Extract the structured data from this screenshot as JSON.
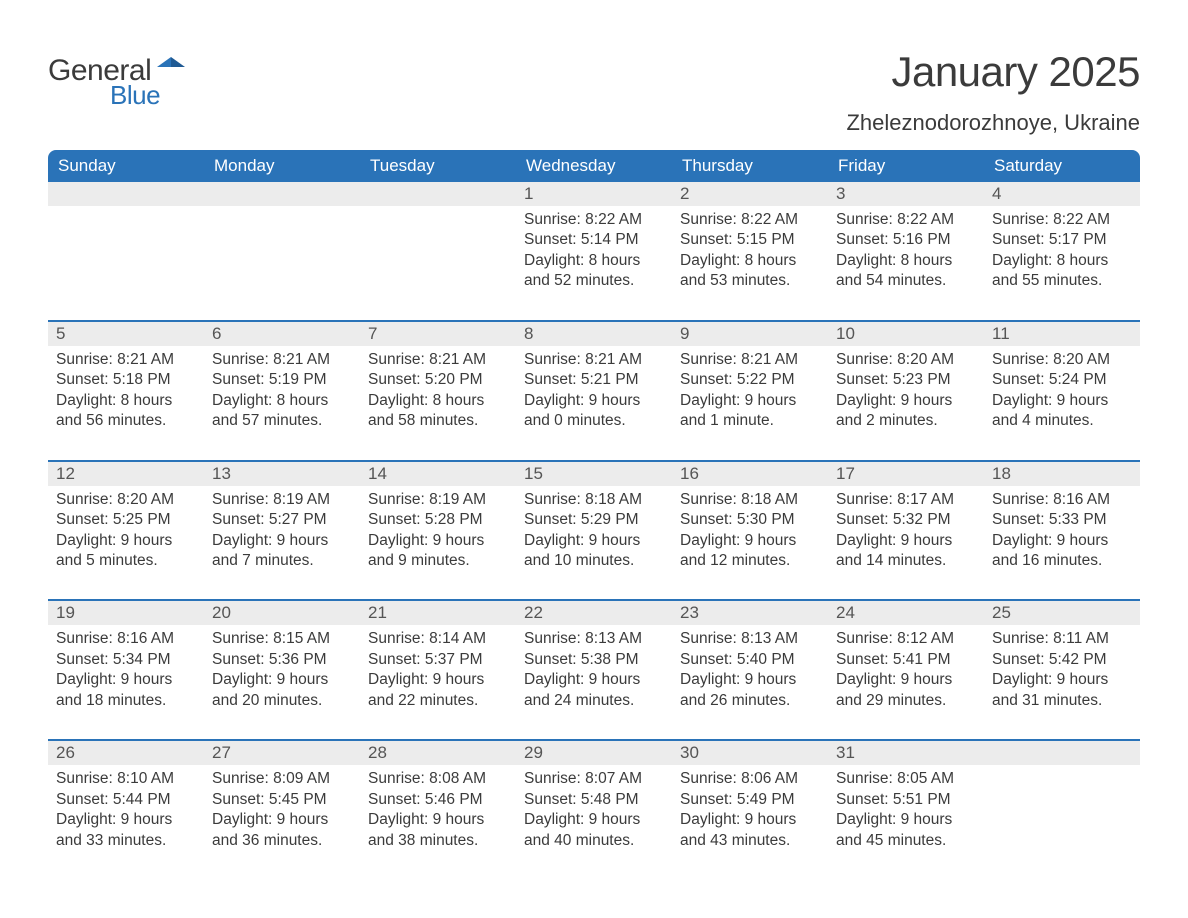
{
  "logo": {
    "text1": "General",
    "text2": "Blue"
  },
  "title": "January 2025",
  "location": "Zheleznodorozhnoye, Ukraine",
  "colors": {
    "header_bg": "#2a73b8",
    "header_text": "#ffffff",
    "date_row_bg": "#ececec",
    "body_text": "#3b3b3b",
    "week_border": "#2a73b8",
    "page_bg": "#ffffff"
  },
  "typography": {
    "title_fontsize": 42,
    "location_fontsize": 22,
    "dayheader_fontsize": 17,
    "date_fontsize": 17,
    "body_fontsize": 15.5,
    "font_family": "Arial"
  },
  "day_headers": [
    "Sunday",
    "Monday",
    "Tuesday",
    "Wednesday",
    "Thursday",
    "Friday",
    "Saturday"
  ],
  "weeks": [
    [
      {
        "date": "",
        "sunrise": "",
        "sunset": "",
        "daylight1": "",
        "daylight2": ""
      },
      {
        "date": "",
        "sunrise": "",
        "sunset": "",
        "daylight1": "",
        "daylight2": ""
      },
      {
        "date": "",
        "sunrise": "",
        "sunset": "",
        "daylight1": "",
        "daylight2": ""
      },
      {
        "date": "1",
        "sunrise": "Sunrise: 8:22 AM",
        "sunset": "Sunset: 5:14 PM",
        "daylight1": "Daylight: 8 hours",
        "daylight2": "and 52 minutes."
      },
      {
        "date": "2",
        "sunrise": "Sunrise: 8:22 AM",
        "sunset": "Sunset: 5:15 PM",
        "daylight1": "Daylight: 8 hours",
        "daylight2": "and 53 minutes."
      },
      {
        "date": "3",
        "sunrise": "Sunrise: 8:22 AM",
        "sunset": "Sunset: 5:16 PM",
        "daylight1": "Daylight: 8 hours",
        "daylight2": "and 54 minutes."
      },
      {
        "date": "4",
        "sunrise": "Sunrise: 8:22 AM",
        "sunset": "Sunset: 5:17 PM",
        "daylight1": "Daylight: 8 hours",
        "daylight2": "and 55 minutes."
      }
    ],
    [
      {
        "date": "5",
        "sunrise": "Sunrise: 8:21 AM",
        "sunset": "Sunset: 5:18 PM",
        "daylight1": "Daylight: 8 hours",
        "daylight2": "and 56 minutes."
      },
      {
        "date": "6",
        "sunrise": "Sunrise: 8:21 AM",
        "sunset": "Sunset: 5:19 PM",
        "daylight1": "Daylight: 8 hours",
        "daylight2": "and 57 minutes."
      },
      {
        "date": "7",
        "sunrise": "Sunrise: 8:21 AM",
        "sunset": "Sunset: 5:20 PM",
        "daylight1": "Daylight: 8 hours",
        "daylight2": "and 58 minutes."
      },
      {
        "date": "8",
        "sunrise": "Sunrise: 8:21 AM",
        "sunset": "Sunset: 5:21 PM",
        "daylight1": "Daylight: 9 hours",
        "daylight2": "and 0 minutes."
      },
      {
        "date": "9",
        "sunrise": "Sunrise: 8:21 AM",
        "sunset": "Sunset: 5:22 PM",
        "daylight1": "Daylight: 9 hours",
        "daylight2": "and 1 minute."
      },
      {
        "date": "10",
        "sunrise": "Sunrise: 8:20 AM",
        "sunset": "Sunset: 5:23 PM",
        "daylight1": "Daylight: 9 hours",
        "daylight2": "and 2 minutes."
      },
      {
        "date": "11",
        "sunrise": "Sunrise: 8:20 AM",
        "sunset": "Sunset: 5:24 PM",
        "daylight1": "Daylight: 9 hours",
        "daylight2": "and 4 minutes."
      }
    ],
    [
      {
        "date": "12",
        "sunrise": "Sunrise: 8:20 AM",
        "sunset": "Sunset: 5:25 PM",
        "daylight1": "Daylight: 9 hours",
        "daylight2": "and 5 minutes."
      },
      {
        "date": "13",
        "sunrise": "Sunrise: 8:19 AM",
        "sunset": "Sunset: 5:27 PM",
        "daylight1": "Daylight: 9 hours",
        "daylight2": "and 7 minutes."
      },
      {
        "date": "14",
        "sunrise": "Sunrise: 8:19 AM",
        "sunset": "Sunset: 5:28 PM",
        "daylight1": "Daylight: 9 hours",
        "daylight2": "and 9 minutes."
      },
      {
        "date": "15",
        "sunrise": "Sunrise: 8:18 AM",
        "sunset": "Sunset: 5:29 PM",
        "daylight1": "Daylight: 9 hours",
        "daylight2": "and 10 minutes."
      },
      {
        "date": "16",
        "sunrise": "Sunrise: 8:18 AM",
        "sunset": "Sunset: 5:30 PM",
        "daylight1": "Daylight: 9 hours",
        "daylight2": "and 12 minutes."
      },
      {
        "date": "17",
        "sunrise": "Sunrise: 8:17 AM",
        "sunset": "Sunset: 5:32 PM",
        "daylight1": "Daylight: 9 hours",
        "daylight2": "and 14 minutes."
      },
      {
        "date": "18",
        "sunrise": "Sunrise: 8:16 AM",
        "sunset": "Sunset: 5:33 PM",
        "daylight1": "Daylight: 9 hours",
        "daylight2": "and 16 minutes."
      }
    ],
    [
      {
        "date": "19",
        "sunrise": "Sunrise: 8:16 AM",
        "sunset": "Sunset: 5:34 PM",
        "daylight1": "Daylight: 9 hours",
        "daylight2": "and 18 minutes."
      },
      {
        "date": "20",
        "sunrise": "Sunrise: 8:15 AM",
        "sunset": "Sunset: 5:36 PM",
        "daylight1": "Daylight: 9 hours",
        "daylight2": "and 20 minutes."
      },
      {
        "date": "21",
        "sunrise": "Sunrise: 8:14 AM",
        "sunset": "Sunset: 5:37 PM",
        "daylight1": "Daylight: 9 hours",
        "daylight2": "and 22 minutes."
      },
      {
        "date": "22",
        "sunrise": "Sunrise: 8:13 AM",
        "sunset": "Sunset: 5:38 PM",
        "daylight1": "Daylight: 9 hours",
        "daylight2": "and 24 minutes."
      },
      {
        "date": "23",
        "sunrise": "Sunrise: 8:13 AM",
        "sunset": "Sunset: 5:40 PM",
        "daylight1": "Daylight: 9 hours",
        "daylight2": "and 26 minutes."
      },
      {
        "date": "24",
        "sunrise": "Sunrise: 8:12 AM",
        "sunset": "Sunset: 5:41 PM",
        "daylight1": "Daylight: 9 hours",
        "daylight2": "and 29 minutes."
      },
      {
        "date": "25",
        "sunrise": "Sunrise: 8:11 AM",
        "sunset": "Sunset: 5:42 PM",
        "daylight1": "Daylight: 9 hours",
        "daylight2": "and 31 minutes."
      }
    ],
    [
      {
        "date": "26",
        "sunrise": "Sunrise: 8:10 AM",
        "sunset": "Sunset: 5:44 PM",
        "daylight1": "Daylight: 9 hours",
        "daylight2": "and 33 minutes."
      },
      {
        "date": "27",
        "sunrise": "Sunrise: 8:09 AM",
        "sunset": "Sunset: 5:45 PM",
        "daylight1": "Daylight: 9 hours",
        "daylight2": "and 36 minutes."
      },
      {
        "date": "28",
        "sunrise": "Sunrise: 8:08 AM",
        "sunset": "Sunset: 5:46 PM",
        "daylight1": "Daylight: 9 hours",
        "daylight2": "and 38 minutes."
      },
      {
        "date": "29",
        "sunrise": "Sunrise: 8:07 AM",
        "sunset": "Sunset: 5:48 PM",
        "daylight1": "Daylight: 9 hours",
        "daylight2": "and 40 minutes."
      },
      {
        "date": "30",
        "sunrise": "Sunrise: 8:06 AM",
        "sunset": "Sunset: 5:49 PM",
        "daylight1": "Daylight: 9 hours",
        "daylight2": "and 43 minutes."
      },
      {
        "date": "31",
        "sunrise": "Sunrise: 8:05 AM",
        "sunset": "Sunset: 5:51 PM",
        "daylight1": "Daylight: 9 hours",
        "daylight2": "and 45 minutes."
      },
      {
        "date": "",
        "sunrise": "",
        "sunset": "",
        "daylight1": "",
        "daylight2": ""
      }
    ]
  ]
}
